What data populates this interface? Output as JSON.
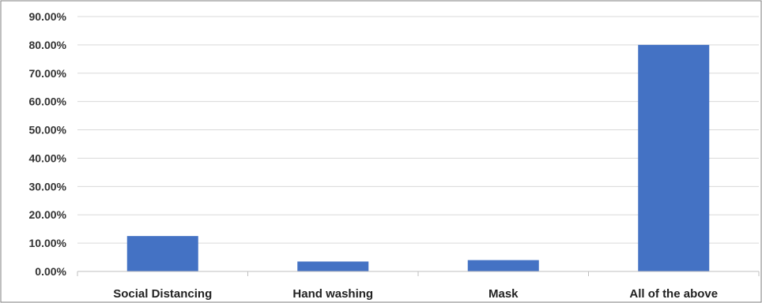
{
  "chart_data": {
    "type": "bar",
    "title": "",
    "xlabel": "",
    "ylabel": "",
    "categories": [
      "Social Distancing",
      "Hand washing",
      "Mask",
      "All of the above"
    ],
    "values": [
      12.5,
      3.5,
      4.0,
      80.0
    ],
    "ylim": [
      0,
      90
    ],
    "y_ticks": [
      "0.00%",
      "10.00%",
      "20.00%",
      "30.00%",
      "40.00%",
      "50.00%",
      "60.00%",
      "70.00%",
      "80.00%",
      "90.00%"
    ],
    "y_tick_values": [
      0,
      10,
      20,
      30,
      40,
      50,
      60,
      70,
      80,
      90
    ],
    "grid": true,
    "legend": "none",
    "colors": {
      "bar": "#4472C4",
      "grid": "#d9d9d9",
      "axis": "#bfbfbf",
      "frame": "#7f7f7f"
    }
  }
}
